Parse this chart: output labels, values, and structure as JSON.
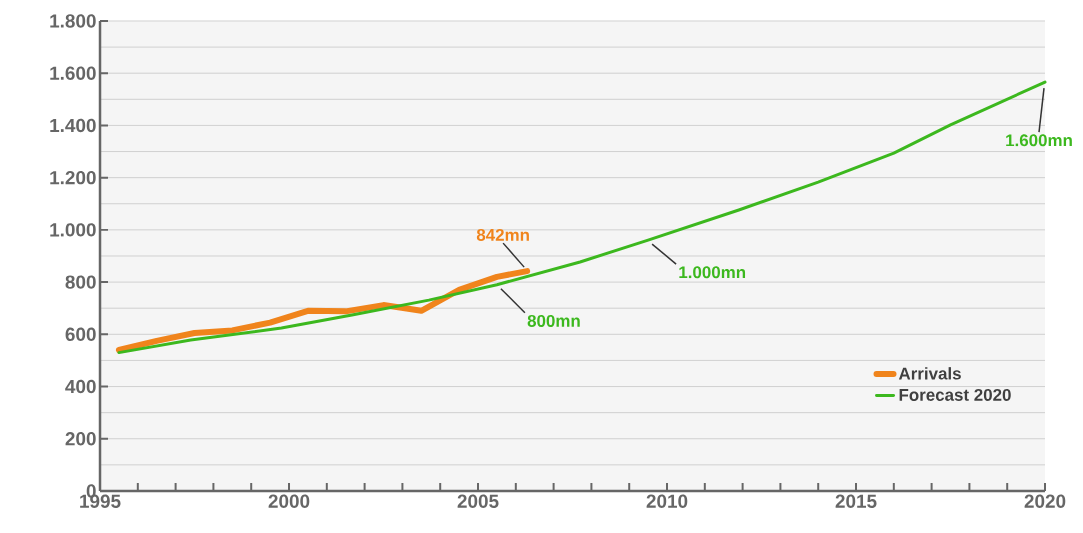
{
  "chart_data": {
    "type": "line",
    "x": [
      1995.5,
      1996.5,
      1997.5,
      1998.5,
      1999.5,
      2000.5,
      2001.5,
      2002.5,
      2003.5,
      2004.5,
      2005.5,
      2006.3
    ],
    "series": [
      {
        "name": "Arrivals",
        "color": "#f0841c",
        "values": [
          540,
          575,
          605,
          615,
          645,
          690,
          688,
          712,
          690,
          770,
          820,
          842
        ]
      },
      {
        "name": "Forecast 2020",
        "color": "#3cb81e",
        "x": [
          1995.5,
          1997.4,
          1999.8,
          2001.7,
          2003.7,
          2005.5,
          2007.7,
          2009.5,
          2011.9,
          2014.0,
          2016.0,
          2017.5,
          2020.0
        ],
        "values": [
          530,
          578,
          624,
          675,
          731,
          790,
          877,
          961,
          1076,
          1183,
          1294,
          1402,
          1566
        ]
      }
    ],
    "xlim": [
      1995,
      2020
    ],
    "xticks": [
      1995,
      {
        "value": 1996,
        "label": null
      },
      {
        "value": 1997,
        "label": null
      },
      {
        "value": 1998,
        "label": null
      },
      {
        "value": 1999,
        "label": null
      },
      2000,
      {
        "value": 2001,
        "label": null
      },
      {
        "value": 2002,
        "label": null
      },
      {
        "value": 2003,
        "label": null
      },
      {
        "value": 2004,
        "label": null
      },
      2005,
      {
        "value": 2006,
        "label": null
      },
      {
        "value": 2007,
        "label": null
      },
      {
        "value": 2008,
        "label": null
      },
      {
        "value": 2009,
        "label": null
      },
      2010,
      {
        "value": 2011,
        "label": null
      },
      {
        "value": 2012,
        "label": null
      },
      {
        "value": 2013,
        "label": null
      },
      {
        "value": 2014,
        "label": null
      },
      2015,
      {
        "value": 2016,
        "label": null
      },
      {
        "value": 2017,
        "label": null
      },
      {
        "value": 2018,
        "label": null
      },
      {
        "value": 2019,
        "label": null
      },
      2020
    ],
    "ylim": [
      0,
      1800
    ],
    "yticks": [
      0,
      200,
      400,
      600,
      800,
      {
        "value": 1000,
        "label": "1.000"
      },
      {
        "value": 1200,
        "label": "1.200"
      },
      {
        "value": 1400,
        "label": "1.400"
      },
      {
        "value": 1600,
        "label": "1.600"
      },
      {
        "value": 1800,
        "label": "1.800"
      }
    ],
    "grid": "y",
    "legend": "bottom right",
    "annotations": [
      {
        "text": "842mn",
        "x": 2006.3,
        "y": 842
      },
      {
        "text": "800mn",
        "x": 2005.5,
        "y": 790
      },
      {
        "text": "1.000mn",
        "x": 2009.5,
        "y": 961
      },
      {
        "text": "1.600mn",
        "x": 2020.0,
        "y": 1566
      }
    ]
  }
}
